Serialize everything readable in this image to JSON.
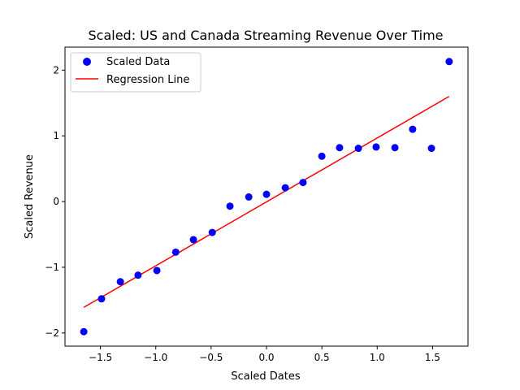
{
  "chart_data": {
    "type": "scatter",
    "title": "Scaled: US and Canada Streaming Revenue Over Time",
    "xlabel": "Scaled Dates",
    "ylabel": "Scaled Revenue",
    "xlim": [
      -1.82,
      1.82
    ],
    "ylim": [
      -2.2,
      2.35
    ],
    "xticks": [
      -1.5,
      -1.0,
      -0.5,
      0.0,
      0.5,
      1.0,
      1.5
    ],
    "xtick_labels": [
      "−1.5",
      "−1.0",
      "−0.5",
      "0.0",
      "0.5",
      "1.0",
      "1.5"
    ],
    "yticks": [
      -2,
      -1,
      0,
      1,
      2
    ],
    "ytick_labels": [
      "−2",
      "−1",
      "0",
      "1",
      "2"
    ],
    "grid": false,
    "legend_position": "top-left",
    "series": [
      {
        "name": "Scaled Data",
        "kind": "scatter",
        "color": "#0000ff",
        "x": [
          -1.65,
          -1.49,
          -1.32,
          -1.16,
          -0.99,
          -0.82,
          -0.66,
          -0.49,
          -0.33,
          -0.16,
          0.0,
          0.17,
          0.33,
          0.5,
          0.66,
          0.83,
          0.99,
          1.16,
          1.32,
          1.49,
          1.65
        ],
        "y": [
          -1.98,
          -1.48,
          -1.22,
          -1.12,
          -1.05,
          -0.77,
          -0.58,
          -0.47,
          -0.07,
          0.07,
          0.11,
          0.21,
          0.29,
          0.69,
          0.82,
          0.81,
          0.83,
          0.82,
          1.1,
          0.81,
          2.13
        ]
      },
      {
        "name": "Regression Line",
        "kind": "line",
        "color": "#ff0000",
        "x": [
          -1.65,
          1.65
        ],
        "y": [
          -1.61,
          1.6
        ]
      }
    ]
  }
}
